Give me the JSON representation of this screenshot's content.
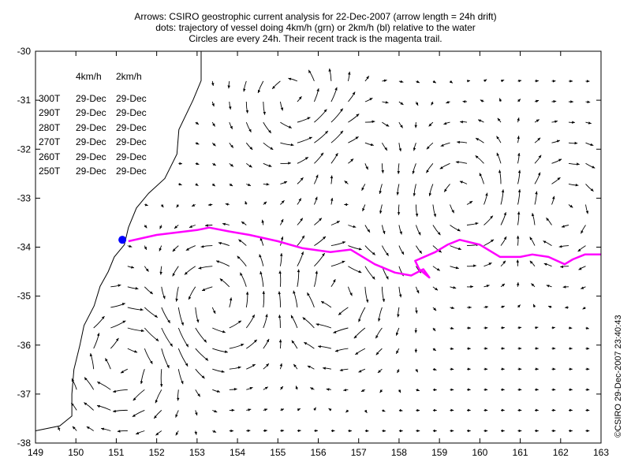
{
  "title_lines": [
    "Arrows: CSIRO geostrophic current analysis for 22-Dec-2007 (arrow length = 24h drift)",
    "dots: trajectory of vessel doing 4km/h (grn) or 2km/h (bl) relative to the water",
    "Circles are every 24h. Their recent track is the magenta trail."
  ],
  "headings": [
    "4km/h",
    "2km/h"
  ],
  "rows": [
    {
      "heading": "300T",
      "v4": "29-Dec",
      "v2": "29-Dec"
    },
    {
      "heading": "290T",
      "v4": "29-Dec",
      "v2": "29-Dec"
    },
    {
      "heading": "280T",
      "v4": "29-Dec",
      "v2": "29-Dec"
    },
    {
      "heading": "270T",
      "v4": "29-Dec",
      "v2": "29-Dec"
    },
    {
      "heading": "260T",
      "v4": "29-Dec",
      "v2": "29-Dec"
    },
    {
      "heading": "250T",
      "v4": "29-Dec",
      "v2": "29-Dec"
    }
  ],
  "credit": "©CSIRO 29-Dec-2007 23:40:43",
  "axes": {
    "x_ticks": [
      "149",
      "150",
      "151",
      "152",
      "153",
      "154",
      "155",
      "156",
      "157",
      "158",
      "159",
      "160",
      "161",
      "162",
      "163"
    ],
    "y_ticks": [
      "-30",
      "-31",
      "-32",
      "-33",
      "-34",
      "-35",
      "-36",
      "-37",
      "-38"
    ],
    "lon_range": [
      149,
      163
    ],
    "lat_range": [
      -38,
      -30
    ]
  },
  "eddies": [
    {
      "lon": 151.2,
      "lat": -36.3,
      "sense": "cw",
      "strength": 0.9
    },
    {
      "lon": 155.4,
      "lat": -31.0,
      "sense": "ccw",
      "strength": 0.7
    },
    {
      "lon": 156.5,
      "lat": -34.9,
      "sense": "cw",
      "strength": 0.9
    },
    {
      "lon": 153.5,
      "lat": -35.2,
      "sense": "ccw",
      "strength": 0.8
    },
    {
      "lon": 159.6,
      "lat": -33.0,
      "sense": "ccw",
      "strength": 0.6
    },
    {
      "lon": 162.1,
      "lat": -33.2,
      "sense": "cw",
      "strength": 0.5
    },
    {
      "lon": 156.8,
      "lat": -32.3,
      "sense": "cw",
      "strength": 0.4
    }
  ],
  "coastline": [
    [
      149.0,
      -37.75
    ],
    [
      149.6,
      -37.65
    ],
    [
      149.9,
      -37.45
    ],
    [
      149.9,
      -37.0
    ],
    [
      149.95,
      -36.5
    ],
    [
      150.1,
      -36.0
    ],
    [
      150.2,
      -35.6
    ],
    [
      150.45,
      -35.2
    ],
    [
      150.6,
      -34.8
    ],
    [
      150.8,
      -34.5
    ],
    [
      150.95,
      -34.2
    ],
    [
      151.2,
      -33.95
    ],
    [
      151.3,
      -33.6
    ],
    [
      151.5,
      -33.2
    ],
    [
      151.8,
      -32.9
    ],
    [
      152.2,
      -32.6
    ],
    [
      152.5,
      -32.1
    ],
    [
      152.55,
      -31.6
    ],
    [
      152.9,
      -31.0
    ],
    [
      153.1,
      -30.6
    ],
    [
      153.1,
      -30.0
    ]
  ],
  "vessel": {
    "lon": 151.15,
    "lat": -33.85,
    "color": "#0000ff"
  },
  "track": {
    "color": "#ff00ff",
    "points": [
      [
        151.3,
        -33.88
      ],
      [
        152.0,
        -33.75
      ],
      [
        153.0,
        -33.65
      ],
      [
        153.3,
        -33.6
      ],
      [
        153.8,
        -33.68
      ],
      [
        154.3,
        -33.75
      ],
      [
        155.0,
        -33.88
      ],
      [
        155.6,
        -34.02
      ],
      [
        156.3,
        -34.1
      ],
      [
        156.8,
        -34.05
      ],
      [
        157.4,
        -34.35
      ],
      [
        157.9,
        -34.52
      ],
      [
        158.3,
        -34.58
      ],
      [
        158.6,
        -34.45
      ],
      [
        158.75,
        -34.62
      ],
      [
        158.5,
        -34.45
      ],
      [
        158.4,
        -34.28
      ],
      [
        158.9,
        -34.1
      ],
      [
        159.2,
        -33.95
      ],
      [
        159.5,
        -33.85
      ],
      [
        160.0,
        -33.95
      ],
      [
        160.5,
        -34.2
      ],
      [
        161.0,
        -34.2
      ],
      [
        161.3,
        -34.15
      ],
      [
        161.7,
        -34.2
      ],
      [
        162.1,
        -34.35
      ],
      [
        162.3,
        -34.25
      ],
      [
        162.6,
        -34.15
      ],
      [
        163.0,
        -34.15
      ]
    ]
  },
  "colors": {
    "arrow": "#000000",
    "axes": "#000000",
    "coast": "#000000",
    "track": "#ff00ff",
    "vessel": "#0000ff"
  }
}
